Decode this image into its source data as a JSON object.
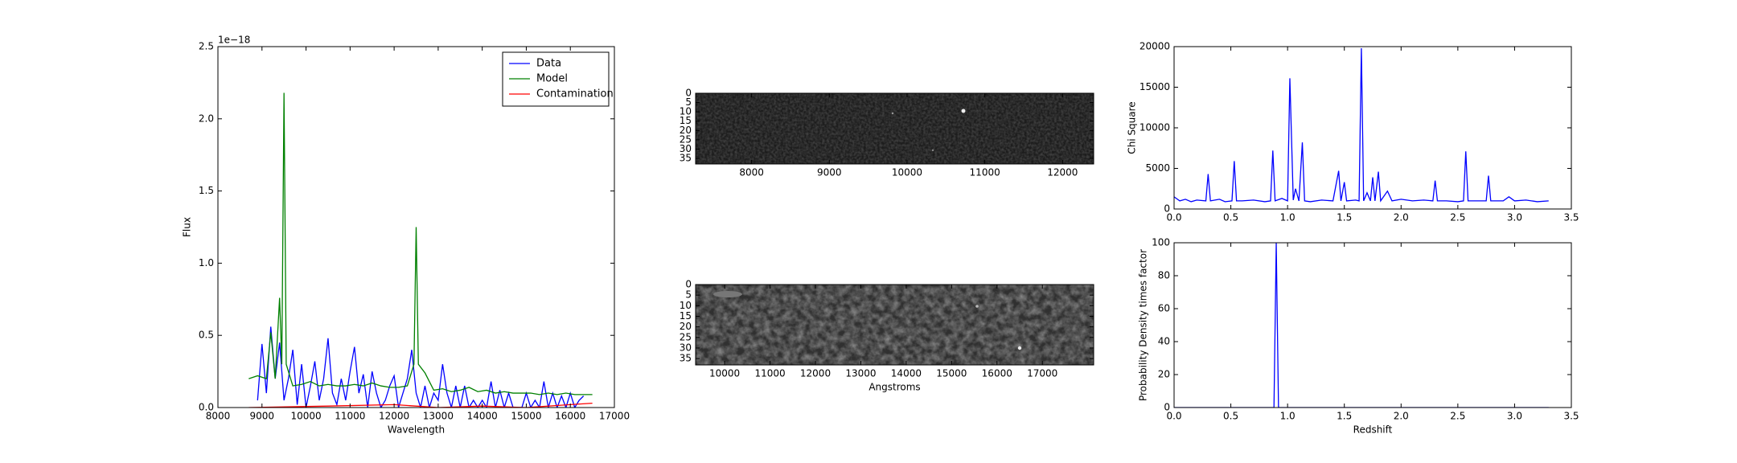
{
  "chart_data": [
    {
      "type": "line",
      "xlabel": "Wavelength",
      "ylabel": "Flux",
      "offset_label": "1e−18",
      "xlim": [
        8000,
        17000
      ],
      "xticks": [
        8000,
        9000,
        10000,
        11000,
        12000,
        13000,
        14000,
        15000,
        16000,
        17000
      ],
      "ylim": [
        0,
        2.5
      ],
      "yticks": [
        {
          "value": 0,
          "label": "0.0"
        },
        {
          "value": 0.5,
          "label": "0.5"
        },
        {
          "value": 1,
          "label": "1.0"
        },
        {
          "value": 1.5,
          "label": "1.5"
        },
        {
          "value": 2,
          "label": "2.0"
        },
        {
          "value": 2.5,
          "label": "2.5"
        }
      ],
      "legend": "upper right",
      "series": [
        {
          "name": "Data",
          "color": "#0000ff",
          "x": [
            8900,
            9000,
            9100,
            9200,
            9300,
            9400,
            9500,
            9600,
            9700,
            9800,
            9900,
            10000,
            10100,
            10200,
            10300,
            10400,
            10500,
            10600,
            10700,
            10800,
            10900,
            11000,
            11100,
            11200,
            11300,
            11400,
            11500,
            11600,
            11700,
            11800,
            11900,
            12000,
            12100,
            12200,
            12300,
            12400,
            12500,
            12600,
            12700,
            12800,
            12900,
            13000,
            13100,
            13200,
            13300,
            13400,
            13500,
            13600,
            13700,
            13800,
            13900,
            14000,
            14100,
            14200,
            14300,
            14400,
            14500,
            14600,
            14700,
            14800,
            14900,
            15000,
            15100,
            15200,
            15300,
            15400,
            15500,
            15600,
            15700,
            15800,
            15900,
            16000,
            16100,
            16200,
            16300
          ],
          "values": [
            0.05,
            0.44,
            0.1,
            0.56,
            0.2,
            0.45,
            0.05,
            0.2,
            0.4,
            0.02,
            0.3,
            0,
            0.15,
            0.32,
            0.05,
            0.2,
            0.48,
            0.1,
            0.02,
            0.2,
            0.05,
            0.25,
            0.42,
            0.1,
            0.23,
            0,
            0.25,
            0.1,
            0,
            0.05,
            0.15,
            0.22,
            0,
            0.1,
            0.2,
            0.4,
            0.1,
            0,
            0.15,
            0,
            0.1,
            0.05,
            0.3,
            0.1,
            0,
            0.15,
            0,
            0.15,
            0,
            0.05,
            0,
            0.05,
            0,
            0.18,
            0,
            0.12,
            0,
            0.1,
            0,
            0,
            0,
            0.1,
            0,
            0.05,
            0,
            0.18,
            0,
            0.1,
            0,
            0.08,
            0,
            0.1,
            0,
            0.05,
            0.08
          ]
        },
        {
          "name": "Model",
          "color": "#008000",
          "x": [
            8700,
            8900,
            9100,
            9200,
            9300,
            9400,
            9450,
            9500,
            9550,
            9700,
            9900,
            10100,
            10300,
            10500,
            10700,
            10900,
            11100,
            11300,
            11500,
            11700,
            11900,
            12100,
            12300,
            12450,
            12500,
            12550,
            12700,
            12900,
            13100,
            13300,
            13500,
            13700,
            13900,
            14100,
            14300,
            14500,
            14700,
            14900,
            15100,
            15300,
            15500,
            15700,
            15900,
            16100,
            16300,
            16500
          ],
          "values": [
            0.2,
            0.22,
            0.2,
            0.52,
            0.2,
            0.76,
            0.3,
            2.18,
            0.3,
            0.15,
            0.16,
            0.18,
            0.15,
            0.16,
            0.15,
            0.15,
            0.16,
            0.15,
            0.17,
            0.15,
            0.14,
            0.14,
            0.15,
            0.3,
            1.25,
            0.3,
            0.24,
            0.12,
            0.13,
            0.11,
            0.12,
            0.14,
            0.11,
            0.12,
            0.1,
            0.11,
            0.1,
            0.1,
            0.1,
            0.09,
            0.1,
            0.09,
            0.1,
            0.09,
            0.09,
            0.09
          ]
        },
        {
          "name": "Contamination",
          "color": "#ff0000",
          "x": [
            8700,
            10500,
            12000,
            13000,
            14000,
            15000,
            16000,
            16500
          ],
          "values": [
            0,
            0.01,
            0.02,
            0,
            0.01,
            0,
            0.02,
            0.03
          ]
        }
      ]
    },
    {
      "type": "image",
      "yinverted": true,
      "xlim": [
        7280,
        12400
      ],
      "xticks": [
        8000,
        9000,
        10000,
        11000,
        12000
      ],
      "ylim": [
        0,
        38
      ],
      "yticks": [
        0,
        5,
        10,
        15,
        20,
        25,
        30,
        35
      ]
    },
    {
      "type": "image",
      "yinverted": true,
      "xlabel": "Angstroms",
      "xlim": [
        9360,
        18130
      ],
      "xticks": [
        10000,
        11000,
        12000,
        13000,
        14000,
        15000,
        16000,
        17000
      ],
      "ylim": [
        0,
        38
      ],
      "yticks": [
        0,
        5,
        10,
        15,
        20,
        25,
        30,
        35
      ]
    },
    {
      "type": "line",
      "ylabel": "Chi Square",
      "xlim": [
        0,
        3.5
      ],
      "xticks": [
        {
          "value": 0,
          "label": "0.0"
        },
        {
          "value": 0.5,
          "label": "0.5"
        },
        {
          "value": 1,
          "label": "1.0"
        },
        {
          "value": 1.5,
          "label": "1.5"
        },
        {
          "value": 2,
          "label": "2.0"
        },
        {
          "value": 2.5,
          "label": "2.5"
        },
        {
          "value": 3,
          "label": "3.0"
        },
        {
          "value": 3.5,
          "label": "3.5"
        }
      ],
      "ylim": [
        0,
        20000
      ],
      "yticks": [
        0,
        5000,
        10000,
        15000,
        20000
      ],
      "series": [
        {
          "color": "#0000ff",
          "x": [
            0,
            0.05,
            0.1,
            0.15,
            0.2,
            0.28,
            0.3,
            0.32,
            0.4,
            0.45,
            0.51,
            0.53,
            0.55,
            0.6,
            0.7,
            0.8,
            0.85,
            0.87,
            0.89,
            0.95,
            1.0,
            1.02,
            1.05,
            1.07,
            1.1,
            1.13,
            1.15,
            1.2,
            1.3,
            1.4,
            1.45,
            1.47,
            1.5,
            1.52,
            1.6,
            1.63,
            1.65,
            1.67,
            1.7,
            1.73,
            1.75,
            1.77,
            1.8,
            1.82,
            1.88,
            1.92,
            2.0,
            2.1,
            2.2,
            2.28,
            2.3,
            2.32,
            2.4,
            2.5,
            2.55,
            2.57,
            2.59,
            2.7,
            2.75,
            2.77,
            2.79,
            2.9,
            2.95,
            3.0,
            3.1,
            3.2,
            3.3
          ],
          "values": [
            1500,
            1000,
            1200,
            900,
            1100,
            1000,
            4300,
            1000,
            1200,
            900,
            1000,
            5900,
            1000,
            1000,
            1100,
            900,
            1000,
            7200,
            1000,
            1300,
            1000,
            16100,
            1100,
            2500,
            1000,
            8200,
            1000,
            900,
            1100,
            1000,
            4700,
            1000,
            3300,
            1000,
            1100,
            1000,
            19800,
            1000,
            2000,
            1000,
            3900,
            1000,
            4600,
            1000,
            2200,
            1000,
            1200,
            1000,
            1100,
            1000,
            3500,
            1000,
            1000,
            900,
            1000,
            7100,
            1000,
            1000,
            1000,
            4100,
            1000,
            1000,
            1500,
            1000,
            1100,
            900,
            1000
          ]
        }
      ]
    },
    {
      "type": "line",
      "xlabel": "Redshift",
      "ylabel": "Probability Density times factor",
      "xlim": [
        0,
        3.5
      ],
      "xticks": [
        {
          "value": 0,
          "label": "0.0"
        },
        {
          "value": 0.5,
          "label": "0.5"
        },
        {
          "value": 1,
          "label": "1.0"
        },
        {
          "value": 1.5,
          "label": "1.5"
        },
        {
          "value": 2,
          "label": "2.0"
        },
        {
          "value": 2.5,
          "label": "2.5"
        },
        {
          "value": 3,
          "label": "3.0"
        },
        {
          "value": 3.5,
          "label": "3.5"
        }
      ],
      "ylim": [
        0,
        100
      ],
      "yticks": [
        0,
        20,
        40,
        60,
        80,
        100
      ],
      "series": [
        {
          "color": "#0000ff",
          "x": [
            0,
            0.88,
            0.9,
            0.92,
            3.3
          ],
          "values": [
            0,
            0,
            100,
            0,
            0
          ]
        }
      ]
    }
  ]
}
